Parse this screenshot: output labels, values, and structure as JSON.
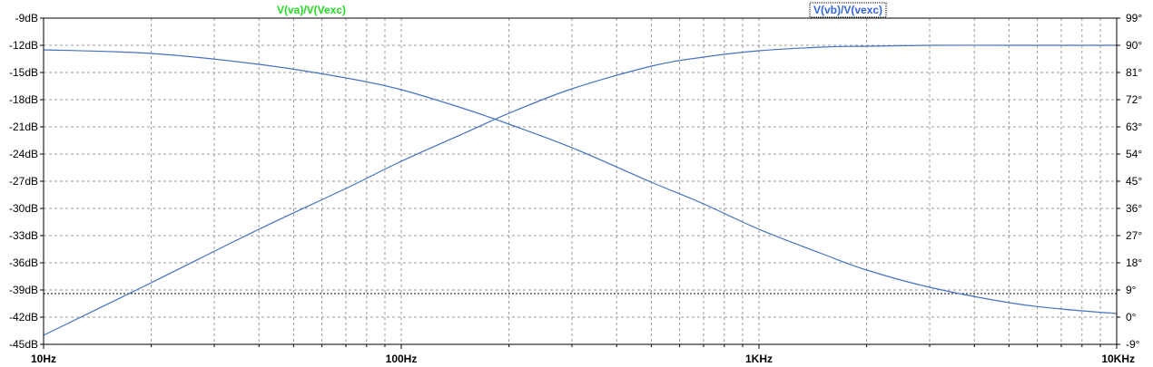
{
  "chart_data": {
    "type": "line",
    "x_scale": "log",
    "xlim": [
      10,
      10000
    ],
    "ylim_left": [
      -45,
      -9
    ],
    "ylim_right": [
      -9,
      99
    ],
    "grid": true,
    "x_major_ticks": [
      {
        "value": 10,
        "label": "10Hz"
      },
      {
        "value": 100,
        "label": "100Hz"
      },
      {
        "value": 1000,
        "label": "1KHz"
      },
      {
        "value": 10000,
        "label": "10KHz"
      }
    ],
    "y_left_ticks": [
      {
        "value": -9,
        "label": "-9dB"
      },
      {
        "value": -12,
        "label": "-12dB"
      },
      {
        "value": -15,
        "label": "-15dB"
      },
      {
        "value": -18,
        "label": "-18dB"
      },
      {
        "value": -21,
        "label": "-21dB"
      },
      {
        "value": -24,
        "label": "-24dB"
      },
      {
        "value": -27,
        "label": "-27dB"
      },
      {
        "value": -30,
        "label": "-30dB"
      },
      {
        "value": -33,
        "label": "-33dB"
      },
      {
        "value": -36,
        "label": "-36dB"
      },
      {
        "value": -39,
        "label": "-39dB"
      },
      {
        "value": -42,
        "label": "-42dB"
      },
      {
        "value": -45,
        "label": "-45dB"
      }
    ],
    "y_right_ticks": [
      {
        "value": 99,
        "label": "99°"
      },
      {
        "value": 90,
        "label": "90°"
      },
      {
        "value": 81,
        "label": "81°"
      },
      {
        "value": 72,
        "label": "72°"
      },
      {
        "value": 63,
        "label": "63°"
      },
      {
        "value": 54,
        "label": "54°"
      },
      {
        "value": 45,
        "label": "45°"
      },
      {
        "value": 36,
        "label": "36°"
      },
      {
        "value": 27,
        "label": "27°"
      },
      {
        "value": 18,
        "label": "18°"
      },
      {
        "value": 9,
        "label": "9°"
      },
      {
        "value": 0,
        "label": "0°"
      },
      {
        "value": -9,
        "label": "-9°"
      }
    ],
    "legend": [
      {
        "name": "V(va)/V(Vexc)",
        "color": "#22dd22"
      },
      {
        "name": "V(vb)/V(vexc)",
        "color": "#3366dd"
      }
    ],
    "series": [
      {
        "name": "V(va)/V(Vexc)",
        "color": "#4472c4",
        "x": [
          10,
          20,
          40,
          70,
          100,
          150,
          200,
          300,
          500,
          700,
          1000,
          1500,
          2000,
          3000,
          5000,
          7000,
          10000
        ],
        "y": [
          -12.5,
          -12.9,
          -14.1,
          -15.6,
          -16.9,
          -19.0,
          -20.7,
          -23.3,
          -27.1,
          -29.5,
          -32.3,
          -35.0,
          -36.8,
          -38.7,
          -40.4,
          -41.1,
          -41.6
        ]
      },
      {
        "name": "V(vb)/V(vexc)",
        "color": "#4472c4",
        "x": [
          10,
          20,
          40,
          70,
          100,
          150,
          200,
          300,
          500,
          700,
          1000,
          1500,
          2000,
          3000,
          5000,
          7000,
          10000
        ],
        "y": [
          -44.0,
          -38.2,
          -32.3,
          -27.8,
          -24.8,
          -21.7,
          -19.5,
          -16.8,
          -14.3,
          -13.3,
          -12.6,
          -12.2,
          -12.1,
          -12.0,
          -12.0,
          -12.0,
          -12.0
        ]
      }
    ]
  }
}
